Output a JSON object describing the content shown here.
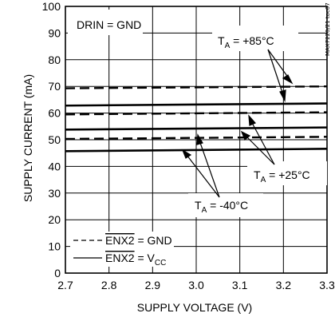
{
  "chart_data": {
    "type": "line",
    "title": "",
    "xlabel": "SUPPLY VOLTAGE (V)",
    "ylabel": "SUPPLY CURRENT (mA)",
    "xlim": [
      2.7,
      3.3
    ],
    "ylim": [
      0,
      100
    ],
    "x_ticks": [
      "2.7",
      "2.8",
      "2.9",
      "3.0",
      "3.1",
      "3.2",
      "3.3"
    ],
    "y_ticks": [
      "0",
      "10",
      "20",
      "30",
      "40",
      "50",
      "60",
      "70",
      "80",
      "90",
      "100"
    ],
    "grid": true,
    "condition": "DRIN = GND",
    "chart_code": "MAX7220/21 toc07",
    "legend": {
      "placement": "bottom-left",
      "entries": [
        {
          "style": "dashed",
          "prefix": "ENX2",
          "suffix": " = GND"
        },
        {
          "style": "solid",
          "prefix": "ENX2",
          "suffix": " = V",
          "sub": "CC"
        }
      ]
    },
    "annotations": [
      {
        "text_main": "T",
        "text_sub": "A",
        "text_rest": " = +85°C"
      },
      {
        "text_main": "T",
        "text_sub": "A",
        "text_rest": " = +25°C"
      },
      {
        "text_main": "T",
        "text_sub": "A",
        "text_rest": " = -40°C"
      }
    ],
    "x": [
      2.7,
      3.3
    ],
    "series": [
      {
        "style": "dashed",
        "temp": "+85°C",
        "values": [
          69.3,
          70.0
        ]
      },
      {
        "style": "solid",
        "temp": "+85°C",
        "values": [
          62.8,
          63.6
        ]
      },
      {
        "style": "dashed",
        "temp": "+25°C",
        "values": [
          59.5,
          60.3
        ]
      },
      {
        "style": "solid",
        "temp": "+25°C",
        "values": [
          53.8,
          54.6
        ]
      },
      {
        "style": "dashed",
        "temp": "-40°C",
        "values": [
          50.3,
          51.1
        ]
      },
      {
        "style": "solid",
        "temp": "-40°C",
        "values": [
          45.7,
          46.6
        ]
      }
    ]
  }
}
